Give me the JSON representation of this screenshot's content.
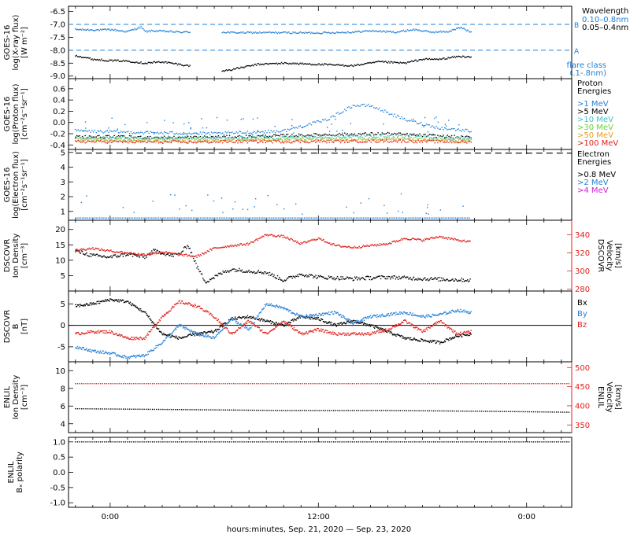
{
  "figure": {
    "bottom_label": "hours:minutes, Sep. 21, 2020 — Sep. 23, 2020",
    "x_ticks": [
      "0:00",
      "12:00",
      "0:00"
    ],
    "x_tick_hours": [
      0,
      12,
      24
    ]
  },
  "chart_data": [
    {
      "type": "scatter",
      "panel": "xray",
      "ylabel_lines": [
        "GOES-16",
        "log(X-ray flux)",
        "[W m⁻²]"
      ],
      "ylim": [
        -9.1,
        -6.3
      ],
      "yticks": [
        -6.5,
        -7.0,
        -7.5,
        -8.0,
        -8.5,
        -9.0
      ],
      "ytick_labels": [
        "-6.5",
        "-7.0",
        "-7.5",
        "-8.0",
        "-8.5",
        "-9.0"
      ],
      "legend_title": "Wavelength",
      "series": [
        {
          "name": "0.10–0.8nm",
          "color": "#1f7fd6",
          "x": [
            -2.0,
            -0.5,
            0.0,
            1.0,
            1.8,
            2.0,
            2.5,
            3.5,
            4.0,
            4.5,
            6.5,
            7.0,
            10.0,
            12.0,
            14.0,
            15.0,
            16.5,
            17.5,
            18.5,
            19.5,
            20.2,
            20.8
          ],
          "y": [
            -7.2,
            -7.22,
            -7.2,
            -7.28,
            -7.1,
            -7.28,
            -7.25,
            -7.28,
            -7.3,
            -7.3,
            -7.3,
            -7.32,
            -7.32,
            -7.33,
            -7.3,
            -7.25,
            -7.3,
            -7.2,
            -7.3,
            -7.28,
            -7.12,
            -7.3
          ]
        },
        {
          "name": "0.05–0.4nm",
          "color": "#000000",
          "x": [
            -2.0,
            -1.0,
            0.0,
            1.0,
            2.0,
            3.0,
            4.0,
            4.5,
            6.5,
            7.0,
            8.5,
            10.0,
            12.0,
            14.0,
            15.5,
            17.0,
            18.0,
            19.0,
            20.0,
            20.8
          ],
          "y": [
            -8.2,
            -8.35,
            -8.4,
            -8.42,
            -8.5,
            -8.45,
            -8.55,
            -8.6,
            -8.8,
            -8.75,
            -8.55,
            -8.5,
            -8.55,
            -8.6,
            -8.45,
            -8.5,
            -8.35,
            -8.35,
            -8.25,
            -8.25
          ]
        }
      ],
      "threshold_lines": [
        {
          "level": -7.0,
          "label": "B"
        },
        {
          "level": -8.0,
          "label": "A"
        }
      ],
      "note_lines": [
        "flare class",
        "(.1-.8nm)"
      ]
    },
    {
      "type": "scatter",
      "panel": "proton",
      "ylabel_lines": [
        "GOES-16",
        "log(Proton flux)",
        "[cm⁻²s⁻¹sr⁻¹]"
      ],
      "ylim": [
        -0.48,
        0.78
      ],
      "yticks": [
        0.6,
        0.4,
        0.2,
        0.0,
        -0.2,
        -0.4
      ],
      "ytick_labels": [
        "0.6",
        "0.4",
        "0.2",
        "0.0",
        "-0.2",
        "-0.4"
      ],
      "legend_title_lines": [
        "Proton",
        "Energies"
      ],
      "series": [
        {
          "name": ">1 MeV",
          "color": "#1f7fd6",
          "x": [
            -2.0,
            2.0,
            6.0,
            10.0,
            12.5,
            14.0,
            15.0,
            17.0,
            19.0,
            20.8
          ],
          "y": [
            -0.15,
            -0.18,
            -0.2,
            -0.15,
            0.05,
            0.3,
            0.3,
            0.05,
            -0.1,
            -0.15
          ]
        },
        {
          "name": ">5 MeV",
          "color": "#000000",
          "x": [
            -2.0,
            4.0,
            8.0,
            12.0,
            16.0,
            20.8
          ],
          "y": [
            -0.25,
            -0.27,
            -0.25,
            -0.22,
            -0.2,
            -0.27
          ]
        },
        {
          "name": ">10 MeV",
          "color": "#3cc4c8",
          "x": [
            -2.0,
            4.0,
            8.0,
            12.0,
            16.0,
            20.8
          ],
          "y": [
            -0.27,
            -0.28,
            -0.27,
            -0.26,
            -0.24,
            -0.28
          ]
        },
        {
          "name": ">30 MeV",
          "color": "#6dd03a",
          "x": [
            -2.0,
            4.0,
            8.0,
            12.0,
            16.0,
            20.8
          ],
          "y": [
            -0.3,
            -0.31,
            -0.3,
            -0.29,
            -0.29,
            -0.31
          ]
        },
        {
          "name": ">50 MeV",
          "color": "#e8a020",
          "x": [
            -2.0,
            4.0,
            8.0,
            12.0,
            16.0,
            20.8
          ],
          "y": [
            -0.32,
            -0.33,
            -0.32,
            -0.32,
            -0.31,
            -0.33
          ]
        },
        {
          "name": ">100 MeV",
          "color": "#e0201b",
          "x": [
            -2.0,
            4.0,
            8.0,
            12.0,
            16.0,
            20.8
          ],
          "y": [
            -0.34,
            -0.35,
            -0.34,
            -0.34,
            -0.33,
            -0.35
          ]
        }
      ]
    },
    {
      "type": "scatter",
      "panel": "electron",
      "ylabel_lines": [
        "GOES-16",
        "log(Electron flux)",
        "[cm⁻²s⁻¹sr⁻¹]"
      ],
      "ylim": [
        0.4,
        5.2
      ],
      "yticks": [
        5,
        4,
        3,
        2,
        1
      ],
      "ytick_labels": [
        "5",
        "4",
        "3",
        "2",
        "1"
      ],
      "legend_title_lines": [
        "Electron",
        "Energies"
      ],
      "series": [
        {
          "name": ">0.8 MeV",
          "color": "#000000",
          "x": [
            -2.0,
            22.0
          ],
          "y": [
            4.95,
            4.95
          ]
        },
        {
          "name": ">2 MeV",
          "color": "#1f7fd6",
          "x": [
            -2.0,
            0.0,
            4.0,
            8.0,
            12.0,
            16.0,
            19.0,
            20.8
          ],
          "y": [
            0.55,
            0.55,
            0.55,
            0.55,
            0.55,
            0.55,
            0.55,
            0.55
          ]
        },
        {
          "name": ">4 MeV",
          "color": "#d21ed2",
          "x": [],
          "y": []
        }
      ]
    },
    {
      "type": "scatter",
      "panel": "dscovr-density",
      "ylabel_lines": [
        "DSCOVR",
        "Ion Density",
        "[cm⁻³]"
      ],
      "ylim": [
        0,
        23
      ],
      "yticks": [
        20,
        15,
        10,
        5
      ],
      "ytick_labels": [
        "20",
        "15",
        "10",
        "5"
      ],
      "right_ylabel_lines": [
        "DSCOVR",
        "Velocity",
        "[km/s]"
      ],
      "right_ylim": [
        278,
        356
      ],
      "right_yticks": [
        340,
        320,
        300,
        280
      ],
      "right_ytick_labels": [
        "340",
        "320",
        "300",
        "280"
      ],
      "series": [
        {
          "name": "Density",
          "color": "#000000",
          "axis": "left",
          "x": [
            -2.0,
            -1.0,
            0.0,
            1.0,
            2.0,
            2.5,
            3.0,
            3.5,
            4.0,
            4.5,
            5.0,
            5.5,
            6.0,
            6.5,
            7.0,
            8.0,
            9.0,
            10.0,
            11.0,
            12.0,
            14.0,
            16.0,
            18.0,
            20.8
          ],
          "y": [
            13,
            11.5,
            11,
            12,
            11,
            13,
            12.5,
            11.5,
            12,
            15,
            8,
            3,
            4.5,
            6,
            7,
            6.5,
            6,
            3.5,
            5.5,
            4.5,
            4,
            4.5,
            4,
            3.5
          ]
        },
        {
          "name": "Velocity",
          "color": "#e0201b",
          "axis": "right",
          "x": [
            -2.0,
            -1.0,
            0.0,
            1.0,
            2.0,
            3.0,
            4.0,
            5.0,
            6.0,
            7.0,
            8.0,
            9.0,
            10.0,
            11.0,
            12.0,
            13.0,
            14.0,
            15.0,
            16.0,
            17.0,
            18.0,
            19.0,
            20.0,
            20.8
          ],
          "y": [
            323,
            325,
            322,
            320,
            318,
            321,
            318,
            316,
            325,
            328,
            330,
            340,
            338,
            330,
            336,
            328,
            326,
            328,
            330,
            336,
            334,
            338,
            334,
            332
          ]
        }
      ]
    },
    {
      "type": "scatter",
      "panel": "dscovr-b",
      "ylabel_lines": [
        "DSCOVR",
        "B",
        "[nT]"
      ],
      "ylim": [
        -8.5,
        8
      ],
      "yticks": [
        5,
        0,
        -5
      ],
      "ytick_labels": [
        "5",
        "0",
        "-5"
      ],
      "zero_line": true,
      "series": [
        {
          "name": "Bx",
          "color": "#000000",
          "x": [
            -2.0,
            -1.0,
            0.0,
            1.0,
            2.0,
            3.0,
            4.0,
            5.0,
            6.0,
            7.0,
            8.0,
            9.0,
            10.0,
            11.0,
            12.0,
            13.0,
            14.0,
            15.0,
            16.0,
            17.0,
            18.0,
            19.0,
            20.0,
            20.8
          ],
          "y": [
            4.5,
            5,
            6,
            5.5,
            3,
            -2,
            -3,
            -2,
            -1.5,
            1.5,
            2,
            1,
            0,
            2,
            1.5,
            0,
            1,
            0,
            -1.5,
            -3,
            -3.5,
            -4,
            -2.5,
            -2
          ]
        },
        {
          "name": "By",
          "color": "#1f7fd6",
          "x": [
            -2.0,
            -1.0,
            0.0,
            1.0,
            2.0,
            3.0,
            4.0,
            5.0,
            6.0,
            7.0,
            8.0,
            9.0,
            10.0,
            11.0,
            12.0,
            13.0,
            14.0,
            15.0,
            16.0,
            17.0,
            18.0,
            19.0,
            20.0,
            20.8
          ],
          "y": [
            -5,
            -6,
            -6.5,
            -7.5,
            -7,
            -4,
            0,
            -2,
            -3,
            1.5,
            -1,
            5,
            4,
            2,
            2.5,
            3,
            0.5,
            2,
            2.5,
            3,
            2,
            2.5,
            3.5,
            3
          ]
        },
        {
          "name": "Bz",
          "color": "#e0201b",
          "x": [
            -2.0,
            -1.0,
            0.0,
            1.0,
            2.0,
            3.0,
            4.0,
            5.0,
            6.0,
            7.0,
            8.0,
            9.0,
            10.0,
            11.0,
            12.0,
            13.0,
            14.0,
            15.0,
            16.0,
            17.0,
            18.0,
            19.0,
            20.0,
            20.8
          ],
          "y": [
            -2,
            -1.5,
            -1.5,
            -3,
            -3,
            2,
            5.5,
            4.5,
            2,
            -2,
            1,
            -2,
            1,
            -2,
            -1,
            -2,
            -2,
            -2,
            -1,
            1,
            -1.5,
            1,
            -2,
            -1.5
          ]
        }
      ]
    },
    {
      "type": "scatter",
      "panel": "enlil-density",
      "ylabel_lines": [
        "ENLIL",
        "Ion Density",
        "[cm⁻³]"
      ],
      "ylim": [
        3,
        11
      ],
      "yticks": [
        10,
        8,
        6,
        4
      ],
      "ytick_labels": [
        "10",
        "8",
        "6",
        "4"
      ],
      "right_ylabel_lines": [
        "ENLIL",
        "Velocity",
        "[km/s]"
      ],
      "right_ylim": [
        330,
        515
      ],
      "right_yticks": [
        500,
        450,
        400,
        350
      ],
      "right_ytick_labels": [
        "500",
        "450",
        "400",
        "350"
      ],
      "series": [
        {
          "name": "Density",
          "color": "#000000",
          "axis": "left",
          "x": [
            -2.0,
            4.0,
            10.0,
            16.0,
            22.0,
            26.5
          ],
          "y": [
            5.7,
            5.6,
            5.5,
            5.5,
            5.4,
            5.3
          ]
        },
        {
          "name": "Velocity",
          "color": "#e0201b",
          "axis": "right",
          "x": [
            -2.0,
            4.0,
            10.0,
            16.0,
            22.0,
            26.5
          ],
          "y": [
            458,
            458,
            458,
            458,
            458,
            458
          ]
        }
      ]
    },
    {
      "type": "scatter",
      "panel": "enlil-polarity",
      "ylabel_lines": [
        "ENLIL",
        "Bₓ polarity"
      ],
      "ylim": [
        -1.15,
        1.15
      ],
      "yticks": [
        1.0,
        0.5,
        0.0,
        -0.5,
        -1.0
      ],
      "ytick_labels": [
        "1.0",
        "0.5",
        "0.0",
        "-0.5",
        "-1.0"
      ],
      "series": [
        {
          "name": "Polarity",
          "color": "#000000",
          "x": [
            -2.0,
            26.5
          ],
          "y": [
            1.0,
            1.0
          ]
        }
      ]
    }
  ]
}
